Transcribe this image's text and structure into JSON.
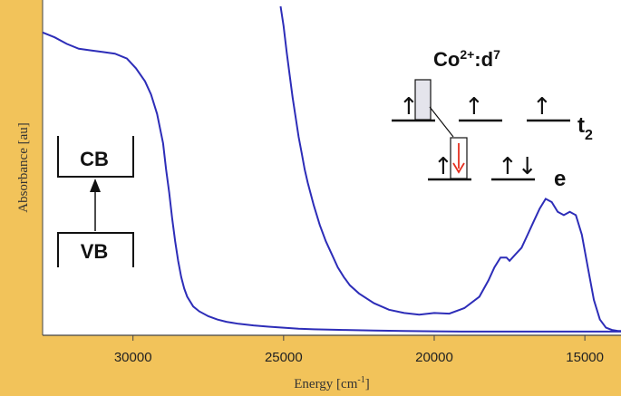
{
  "chart_data": {
    "type": "line",
    "title": "",
    "xlabel": "Energy [cm",
    "xlabel_sup": "-1",
    "xlabel_end": "]",
    "ylabel": "Absorbance [au]",
    "xlim": [
      33000,
      13800
    ],
    "x_reversed": true,
    "ylim": [
      0,
      1
    ],
    "grid": false,
    "xticks": [
      {
        "value": 30000,
        "label": "30000"
      },
      {
        "value": 25000,
        "label": "25000"
      },
      {
        "value": 20000,
        "label": "20000"
      },
      {
        "value": 15000,
        "label": "15000"
      }
    ],
    "series": [
      {
        "color": "#2d2db8",
        "x": [
          33000,
          32600,
          32200,
          31800,
          31400,
          31000,
          30600,
          30200,
          29900,
          29600,
          29400,
          29200,
          29000,
          28900,
          28800,
          28700,
          28600,
          28500,
          28400,
          28300,
          28200,
          28000,
          27800,
          27500,
          27200,
          26900,
          26500,
          26000,
          25500,
          25000,
          24500,
          24000,
          23000,
          22000,
          21000,
          20000,
          19000,
          18000,
          17000,
          16000,
          15000,
          14500,
          14000,
          13800
        ],
        "y": [
          0.92,
          0.905,
          0.885,
          0.87,
          0.865,
          0.86,
          0.855,
          0.84,
          0.81,
          0.77,
          0.73,
          0.67,
          0.58,
          0.5,
          0.43,
          0.35,
          0.28,
          0.22,
          0.17,
          0.135,
          0.11,
          0.08,
          0.065,
          0.05,
          0.04,
          0.033,
          0.027,
          0.022,
          0.018,
          0.015,
          0.012,
          0.01,
          0.008,
          0.006,
          0.005,
          0.004,
          0.003,
          0.003,
          0.003,
          0.003,
          0.003,
          0.003,
          0.003,
          0.003
        ]
      },
      {
        "color": "#2d2db8",
        "x": [
          25100,
          25000,
          24900,
          24800,
          24700,
          24600,
          24500,
          24400,
          24300,
          24200,
          24000,
          23800,
          23600,
          23400,
          23200,
          23000,
          22800,
          22500,
          22000,
          21500,
          21000,
          20500,
          20000,
          19500,
          19000,
          18500,
          18200,
          18000,
          17800,
          17600,
          17500,
          17300,
          17100,
          16900,
          16700,
          16500,
          16300,
          16100,
          15900,
          15700,
          15500,
          15300,
          15100,
          14900,
          14700,
          14500,
          14300,
          14100,
          13900,
          13800
        ],
        "y": [
          1.0,
          0.94,
          0.86,
          0.79,
          0.72,
          0.66,
          0.6,
          0.55,
          0.5,
          0.46,
          0.39,
          0.33,
          0.28,
          0.24,
          0.2,
          0.17,
          0.145,
          0.12,
          0.09,
          0.07,
          0.06,
          0.055,
          0.06,
          0.058,
          0.075,
          0.11,
          0.16,
          0.2,
          0.23,
          0.23,
          0.22,
          0.24,
          0.26,
          0.3,
          0.34,
          0.38,
          0.41,
          0.4,
          0.37,
          0.36,
          0.37,
          0.36,
          0.3,
          0.2,
          0.1,
          0.04,
          0.015,
          0.008,
          0.005,
          0.005
        ]
      }
    ]
  },
  "inset_band": {
    "top_label": "CB",
    "bottom_label": "VB"
  },
  "inset_levels": {
    "title_base": "Co",
    "title_sup": "2+",
    "title_mid": ":d",
    "title_exp": "7",
    "t2_letter": "t",
    "t2_sub": "2",
    "e_label": "e",
    "arrow_up": "↑",
    "arrow_updown": "↑↓",
    "hole_arrow_color": "#e53020"
  }
}
